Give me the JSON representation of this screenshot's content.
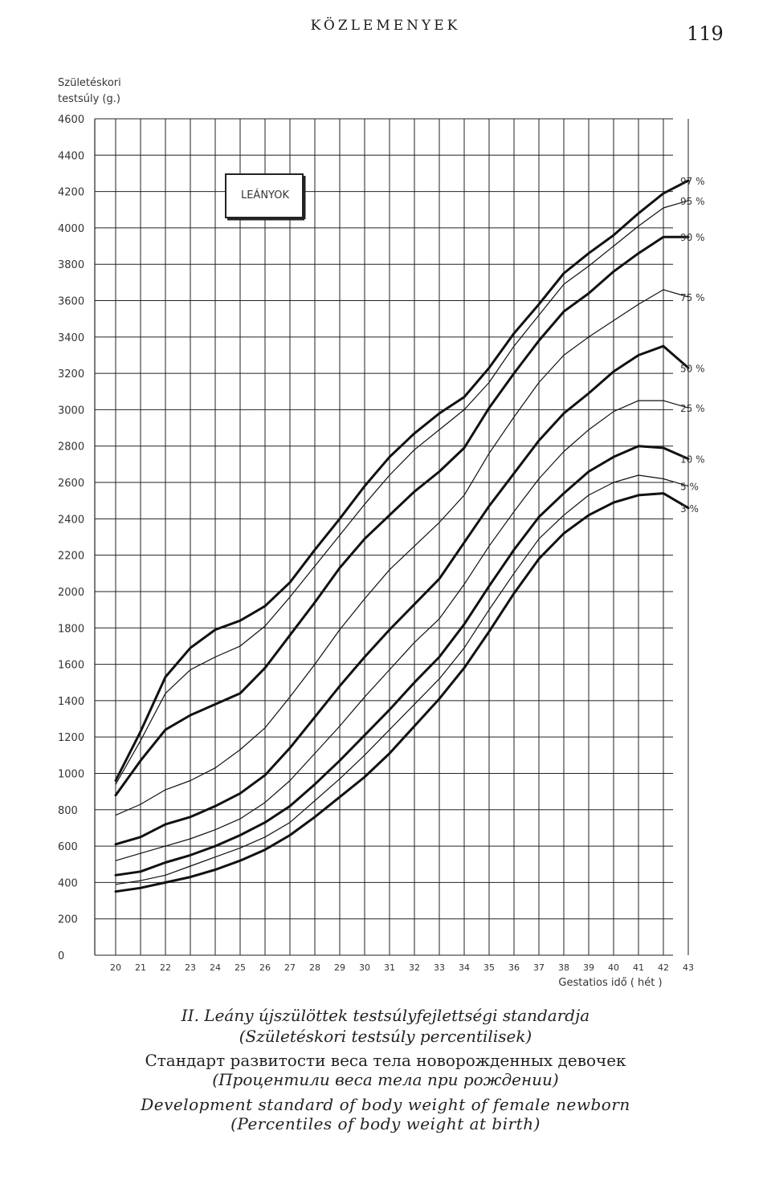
{
  "header": {
    "running_head": "KÖZLEMENYEK",
    "page_number": "119"
  },
  "chart_data": {
    "type": "line",
    "ylabel_line1": "Születéskori",
    "ylabel_line2": "testsúly (g.)",
    "xlabel": "Gestatios idő ( hét )",
    "legend_box": "LEÁNYOK",
    "ylim": [
      0,
      4600
    ],
    "ytick_step": 200,
    "yticks": [
      "0",
      "200",
      "400",
      "600",
      "800",
      "1000",
      "1200",
      "1400",
      "1600",
      "1800",
      "2000",
      "2200",
      "2400",
      "2600",
      "2800",
      "3000",
      "3200",
      "3400",
      "3600",
      "3800",
      "4000",
      "4200",
      "4400",
      "4600"
    ],
    "x": [
      20,
      21,
      22,
      23,
      24,
      25,
      26,
      27,
      28,
      29,
      30,
      31,
      32,
      33,
      34,
      35,
      36,
      37,
      38,
      39,
      40,
      41,
      42,
      43
    ],
    "xticks": [
      "20",
      "21",
      "22",
      "23",
      "24",
      "25",
      "26",
      "27",
      "28",
      "29",
      "30",
      "31",
      "32",
      "33",
      "34",
      "35",
      "36",
      "37",
      "38",
      "39",
      "40",
      "41",
      "42",
      "43"
    ],
    "grid": true,
    "series": [
      {
        "name": "97 %",
        "weight": "bold",
        "values": [
          960,
          1230,
          1530,
          1690,
          1790,
          1840,
          1920,
          2050,
          2230,
          2400,
          2580,
          2740,
          2870,
          2980,
          3070,
          3230,
          3420,
          3580,
          3750,
          3860,
          3960,
          4080,
          4190,
          4260
        ]
      },
      {
        "name": "95 %",
        "weight": "thin",
        "values": [
          940,
          1180,
          1440,
          1570,
          1640,
          1700,
          1810,
          1970,
          2140,
          2310,
          2480,
          2640,
          2780,
          2890,
          3000,
          3150,
          3350,
          3520,
          3690,
          3790,
          3900,
          4010,
          4110,
          4150
        ]
      },
      {
        "name": "90 %",
        "weight": "bold",
        "values": [
          880,
          1070,
          1240,
          1320,
          1380,
          1440,
          1580,
          1760,
          1940,
          2130,
          2290,
          2420,
          2550,
          2660,
          2790,
          3010,
          3200,
          3380,
          3540,
          3640,
          3760,
          3860,
          3950,
          3950
        ]
      },
      {
        "name": "75 %",
        "weight": "thin",
        "values": [
          770,
          830,
          910,
          960,
          1030,
          1130,
          1250,
          1420,
          1600,
          1790,
          1960,
          2120,
          2250,
          2380,
          2530,
          2760,
          2960,
          3150,
          3300,
          3400,
          3490,
          3580,
          3660,
          3620
        ]
      },
      {
        "name": "50 %",
        "weight": "bold",
        "values": [
          610,
          650,
          720,
          760,
          820,
          890,
          990,
          1140,
          1310,
          1480,
          1640,
          1790,
          1930,
          2070,
          2270,
          2470,
          2650,
          2830,
          2980,
          3090,
          3210,
          3300,
          3350,
          3230
        ]
      },
      {
        "name": "25 %",
        "weight": "thin",
        "values": [
          520,
          560,
          600,
          640,
          690,
          750,
          840,
          960,
          1110,
          1260,
          1420,
          1570,
          1720,
          1850,
          2040,
          2250,
          2440,
          2620,
          2770,
          2890,
          2990,
          3050,
          3050,
          3010
        ]
      },
      {
        "name": "10 %",
        "weight": "bold",
        "values": [
          440,
          460,
          510,
          550,
          600,
          660,
          730,
          820,
          940,
          1070,
          1210,
          1350,
          1500,
          1640,
          1820,
          2030,
          2230,
          2410,
          2540,
          2660,
          2740,
          2800,
          2790,
          2730
        ]
      },
      {
        "name": "5 %",
        "weight": "thin",
        "values": [
          390,
          410,
          440,
          490,
          540,
          590,
          650,
          730,
          850,
          970,
          1100,
          1240,
          1380,
          1520,
          1690,
          1900,
          2100,
          2290,
          2420,
          2530,
          2600,
          2640,
          2620,
          2580
        ]
      },
      {
        "name": "3 %",
        "weight": "bold",
        "values": [
          350,
          370,
          400,
          430,
          470,
          520,
          580,
          660,
          760,
          870,
          980,
          1110,
          1260,
          1410,
          1580,
          1780,
          1990,
          2180,
          2320,
          2420,
          2490,
          2530,
          2540,
          2460
        ]
      }
    ]
  },
  "caption": {
    "hu_line1": "II. Leány újszülöttek testsúlyfejlettségi standardja",
    "hu_line2": "(Születéskori testsúly percentilisek)",
    "ru_line1": "Стандарт развитости веса тела новорожденных девочек",
    "ru_line2": "(Процентили веса тела при рождении)",
    "en_line1": "Development standard of body weight of female newborn",
    "en_line2": "(Percentiles of body weight at birth)"
  }
}
